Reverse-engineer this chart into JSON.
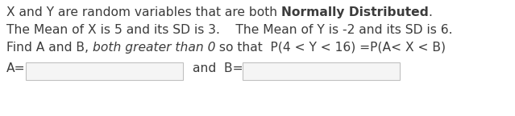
{
  "line1_pre": "X and Y are random variables that are both ",
  "line1_bold": "Normally Distributed",
  "line1_post": ".",
  "line2": "The Mean of X is 5 and its SD is 3.    The Mean of Y is -2 and its SD is 6.",
  "line3_pre": "Find A and B, ",
  "line3_italic": "both greater than 0",
  "line3_post": " so that  P(4 < Y < 16) =P(A< X < B)",
  "label_a": "A=",
  "label_and_b": "and  B=",
  "bg_color": "#ffffff",
  "text_color": "#3c3c3c",
  "box_face": "#f5f5f5",
  "box_edge": "#c0c0c0",
  "font_size": 11.2,
  "fig_w": 6.39,
  "fig_h": 1.45,
  "dpi": 100
}
